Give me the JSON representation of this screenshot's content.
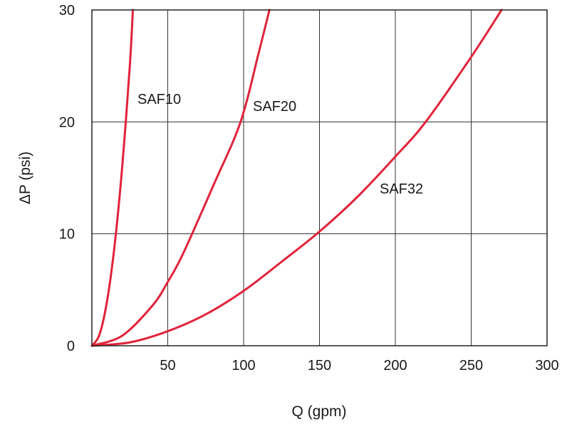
{
  "chart_data": {
    "type": "line",
    "title": "",
    "xlabel": "Q (gpm)",
    "ylabel": "ΔP (psi)",
    "xlim": [
      0,
      300
    ],
    "ylim": [
      0,
      30
    ],
    "x_ticks": [
      50,
      100,
      150,
      200,
      250,
      300
    ],
    "x_tick_labels": [
      "50",
      "100",
      "150",
      "200",
      "250",
      "300"
    ],
    "y_ticks": [
      0,
      10,
      20,
      30
    ],
    "y_tick_labels": [
      "0",
      "10",
      "20",
      "30"
    ],
    "grid": true,
    "legend": "none (series labeled directly on curves)",
    "series_color": "#e0233a",
    "series": [
      {
        "name": "SAF10",
        "x": [
          0,
          5,
          10,
          15,
          20,
          25,
          27
        ],
        "y": [
          0,
          1.0,
          4.0,
          9.0,
          16.0,
          25.0,
          30.0
        ]
      },
      {
        "name": "SAF20",
        "x": [
          0,
          20,
          40,
          50,
          60,
          80,
          98,
          110,
          117
        ],
        "y": [
          0,
          0.9,
          3.6,
          5.7,
          8.2,
          14.3,
          20.0,
          26.2,
          30.0
        ]
      },
      {
        "name": "SAF32",
        "x": [
          0,
          25,
          50,
          75,
          100,
          125,
          150,
          175,
          200,
          220,
          250,
          270
        ],
        "y": [
          0,
          0.3,
          1.3,
          2.8,
          4.9,
          7.5,
          10.2,
          13.3,
          16.9,
          20.0,
          25.8,
          30.0
        ]
      }
    ]
  }
}
